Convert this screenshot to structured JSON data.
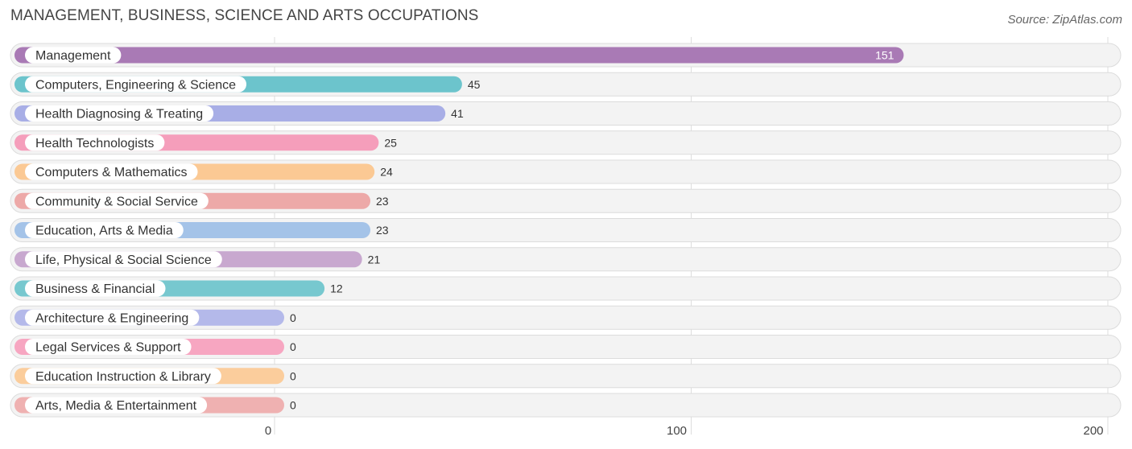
{
  "chart_data": {
    "type": "bar",
    "orientation": "horizontal",
    "title": "MANAGEMENT, BUSINESS, SCIENCE AND ARTS OCCUPATIONS",
    "source": "Source: ZipAtlas.com",
    "categories": [
      "Management",
      "Computers, Engineering & Science",
      "Health Diagnosing & Treating",
      "Health Technologists",
      "Computers & Mathematics",
      "Community & Social Service",
      "Education, Arts & Media",
      "Life, Physical & Social Science",
      "Business & Financial",
      "Architecture & Engineering",
      "Legal Services & Support",
      "Education Instruction & Library",
      "Arts, Media & Entertainment"
    ],
    "values": [
      151,
      45,
      41,
      25,
      24,
      23,
      23,
      21,
      12,
      0,
      0,
      0,
      0
    ],
    "colors": [
      "#a97ab5",
      "#6cc4cc",
      "#a8aee6",
      "#f59ebb",
      "#fbc994",
      "#eda9a8",
      "#a4c3e8",
      "#c8a8cf",
      "#77c8cf",
      "#b4b9ea",
      "#f7a6c1",
      "#fbcd9c",
      "#efb1b1"
    ],
    "xlim": [
      0,
      200
    ],
    "xticks": [
      0,
      100,
      200
    ],
    "xlabel": "",
    "ylabel": "",
    "grid": true
  }
}
